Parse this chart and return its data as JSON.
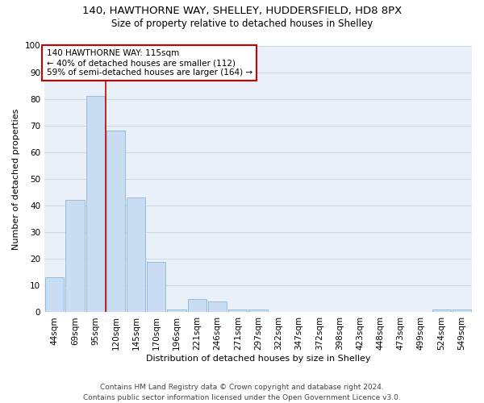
{
  "title1": "140, HAWTHORNE WAY, SHELLEY, HUDDERSFIELD, HD8 8PX",
  "title2": "Size of property relative to detached houses in Shelley",
  "xlabel": "Distribution of detached houses by size in Shelley",
  "ylabel": "Number of detached properties",
  "categories": [
    "44sqm",
    "69sqm",
    "95sqm",
    "120sqm",
    "145sqm",
    "170sqm",
    "196sqm",
    "221sqm",
    "246sqm",
    "271sqm",
    "297sqm",
    "322sqm",
    "347sqm",
    "372sqm",
    "398sqm",
    "423sqm",
    "448sqm",
    "473sqm",
    "499sqm",
    "524sqm",
    "549sqm"
  ],
  "values": [
    13,
    42,
    81,
    68,
    43,
    19,
    1,
    5,
    4,
    1,
    1,
    0,
    0,
    0,
    0,
    0,
    0,
    0,
    0,
    1,
    1
  ],
  "bar_color": "#c9ddf2",
  "bar_edge_color": "#8ab5d9",
  "grid_color": "#c8d8e8",
  "bg_color": "#eaf0f8",
  "vline_color": "#cc0000",
  "vline_x_index": 2.5,
  "annotation_text": "140 HAWTHORNE WAY: 115sqm\n← 40% of detached houses are smaller (112)\n59% of semi-detached houses are larger (164) →",
  "annotation_box_color": "#cc0000",
  "ylim": [
    0,
    100
  ],
  "yticks": [
    0,
    10,
    20,
    30,
    40,
    50,
    60,
    70,
    80,
    90,
    100
  ],
  "footer": "Contains HM Land Registry data © Crown copyright and database right 2024.\nContains public sector information licensed under the Open Government Licence v3.0.",
  "title1_fontsize": 9.5,
  "title2_fontsize": 8.5,
  "xlabel_fontsize": 8,
  "ylabel_fontsize": 8,
  "tick_fontsize": 7.5,
  "annotation_fontsize": 7.5,
  "footer_fontsize": 6.5
}
